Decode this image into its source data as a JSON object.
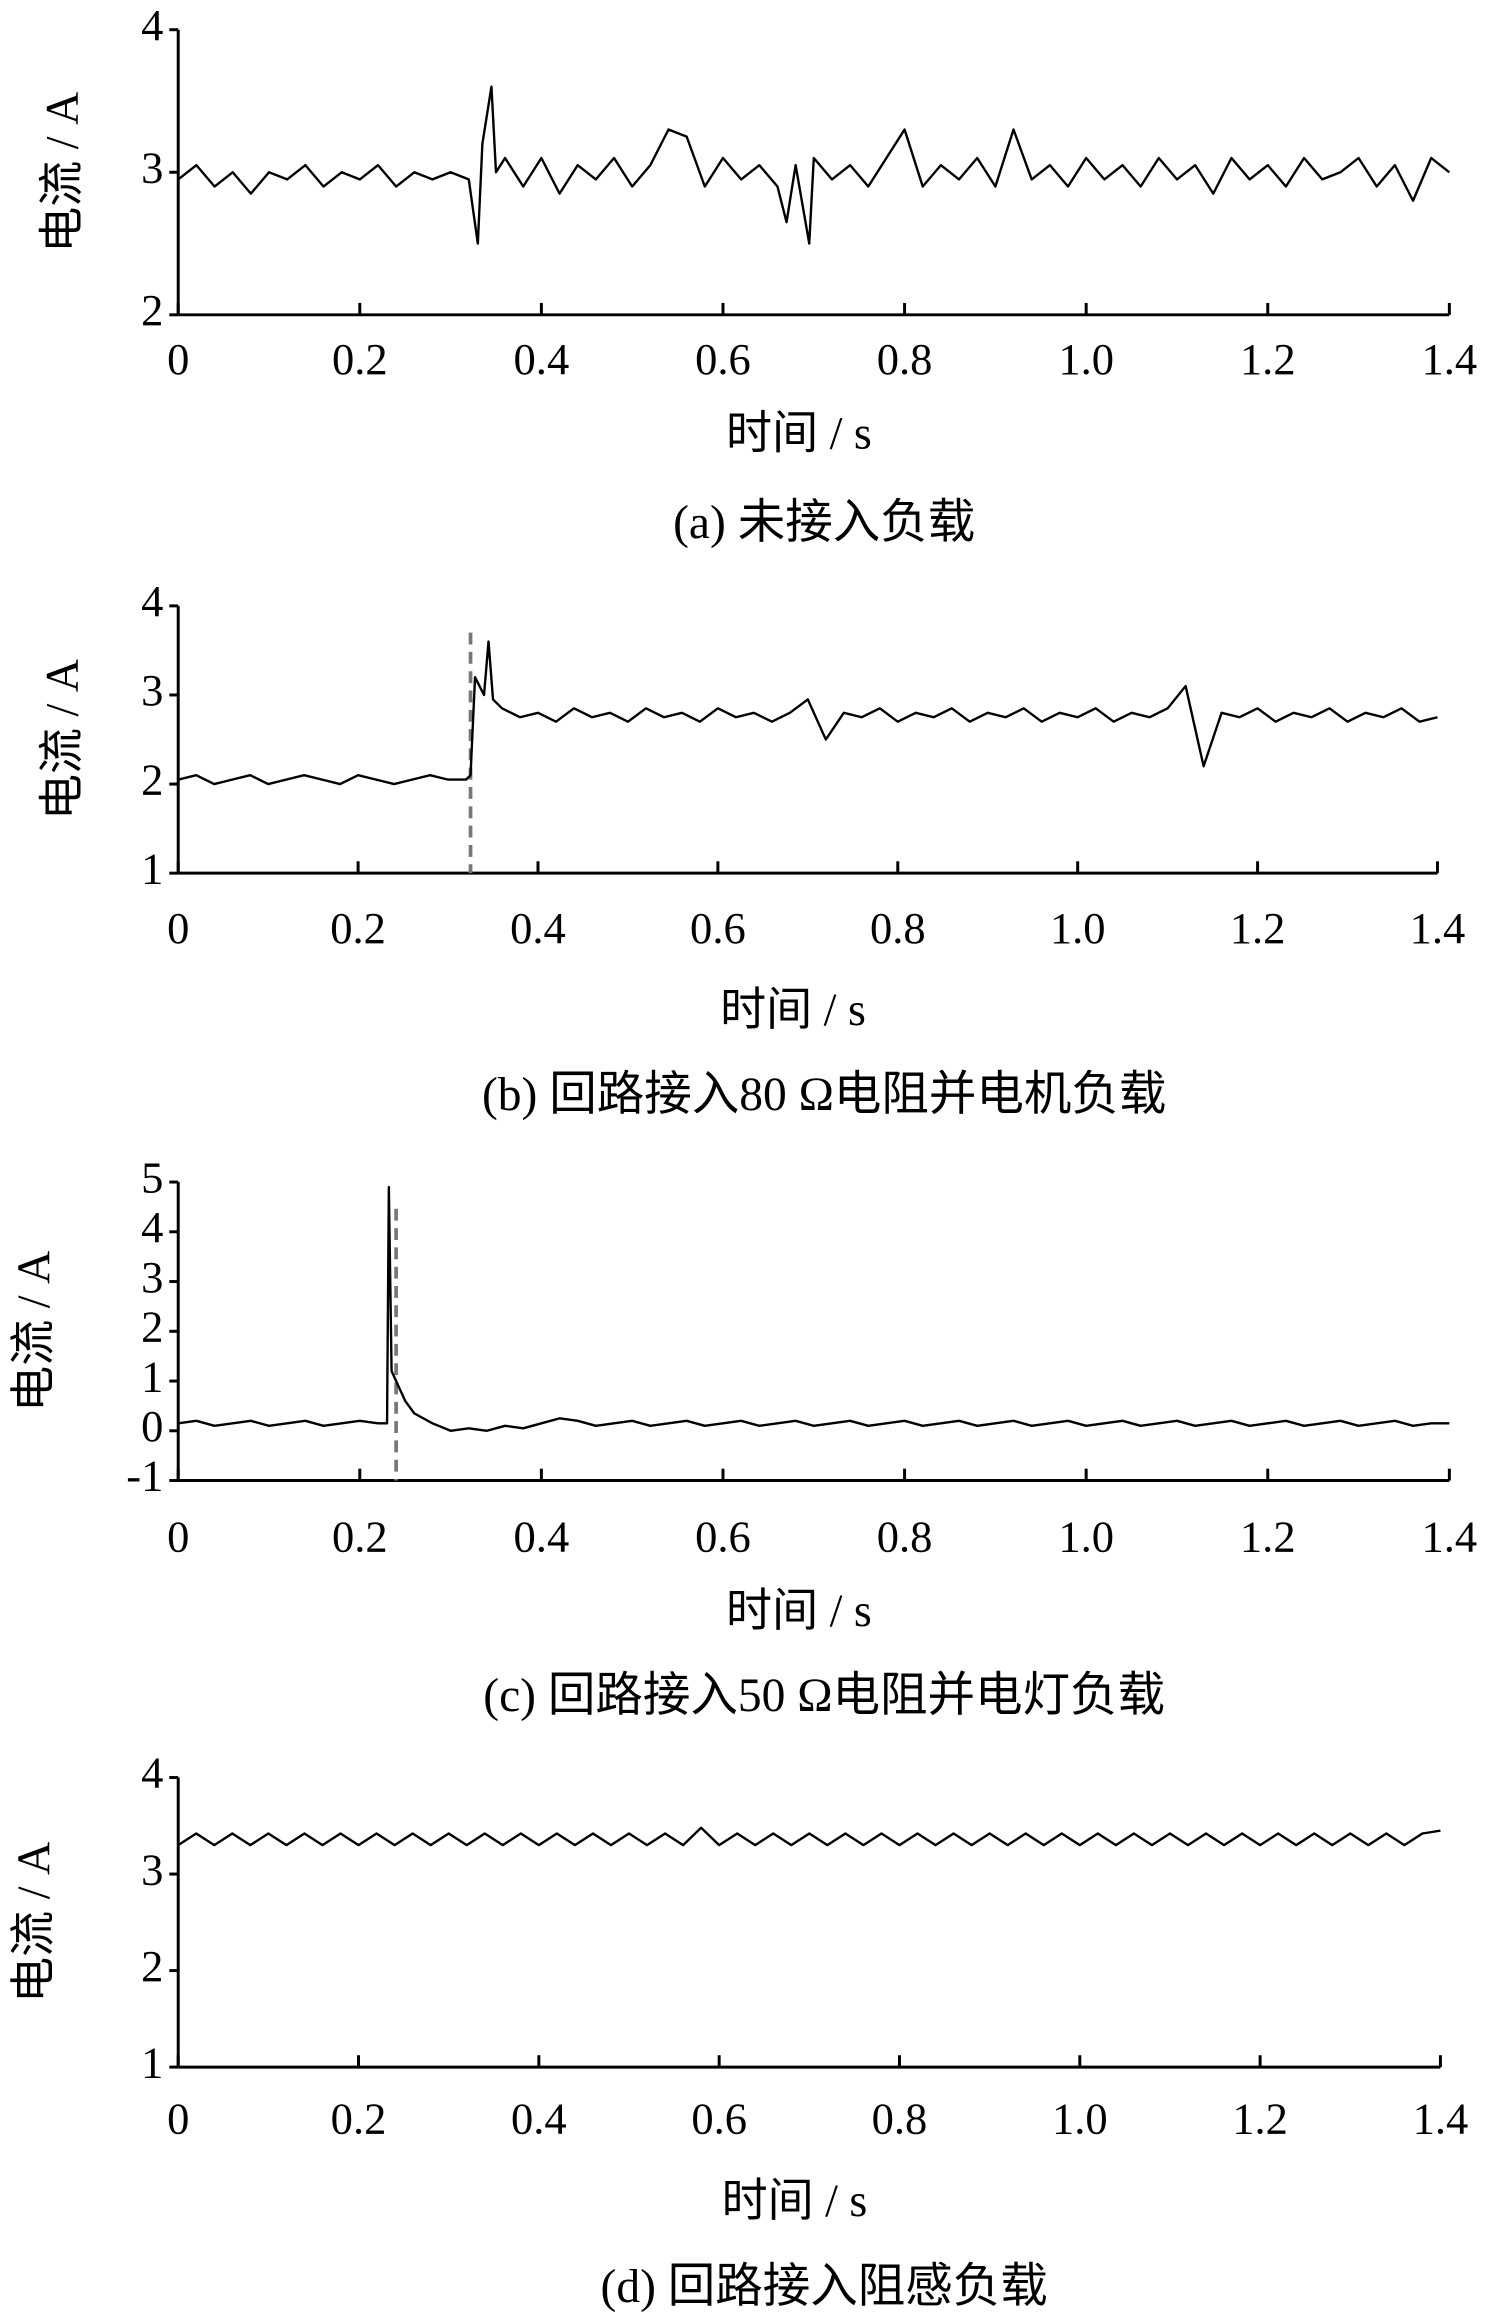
{
  "chart_data": [
    {
      "type": "line",
      "title": "(a) 未接入负载",
      "x_label": "时间 / s",
      "y_label": "电流 / A",
      "xlim": [
        0,
        1.4
      ],
      "ylim": [
        2,
        4
      ],
      "xticks": [
        0,
        0.2,
        0.4,
        0.6,
        0.8,
        {
          "value": 1,
          "label": "1.0"
        },
        1.2,
        1.4
      ],
      "yticks": [
        2,
        3,
        4
      ],
      "series": [
        {
          "color": "#000000",
          "x": [
            0,
            0.02,
            0.04,
            0.06,
            0.08,
            0.1,
            0.12,
            0.14,
            0.16,
            0.18,
            0.2,
            0.22,
            0.24,
            0.26,
            0.28,
            0.3,
            0.32,
            0.33,
            0.335,
            0.345,
            0.35,
            0.36,
            0.38,
            0.4,
            0.42,
            0.44,
            0.46,
            0.48,
            0.5,
            0.52,
            0.54,
            0.56,
            0.58,
            0.6,
            0.62,
            0.64,
            0.66,
            0.67,
            0.68,
            0.695,
            0.7,
            0.72,
            0.74,
            0.76,
            0.78,
            0.8,
            0.82,
            0.84,
            0.86,
            0.88,
            0.9,
            0.92,
            0.94,
            0.96,
            0.98,
            1,
            1.02,
            1.04,
            1.06,
            1.08,
            1.1,
            1.12,
            1.14,
            1.16,
            1.18,
            1.2,
            1.22,
            1.24,
            1.26,
            1.28,
            1.3,
            1.32,
            1.34,
            1.36,
            1.38,
            1.4
          ],
          "values": [
            2.95,
            3.05,
            2.9,
            3.0,
            2.85,
            3.0,
            2.95,
            3.05,
            2.9,
            3.0,
            2.95,
            3.05,
            2.9,
            3.0,
            2.95,
            3.0,
            2.95,
            2.5,
            3.2,
            3.6,
            3.0,
            3.1,
            2.9,
            3.1,
            2.85,
            3.05,
            2.95,
            3.1,
            2.9,
            3.05,
            3.3,
            3.25,
            2.9,
            3.1,
            2.95,
            3.05,
            2.9,
            2.65,
            3.05,
            2.5,
            3.1,
            2.95,
            3.05,
            2.9,
            3.1,
            3.3,
            2.9,
            3.05,
            2.95,
            3.1,
            2.9,
            3.3,
            2.95,
            3.05,
            2.9,
            3.1,
            2.95,
            3.05,
            2.9,
            3.1,
            2.95,
            3.05,
            2.85,
            3.1,
            2.95,
            3.05,
            2.9,
            3.1,
            2.95,
            3.0,
            3.1,
            2.9,
            3.05,
            2.8,
            3.1,
            3.0
          ]
        }
      ]
    },
    {
      "type": "line",
      "title": "(b) 回路接入80 Ω电阻并电机负载",
      "x_label": "时间 / s",
      "y_label": "电流 / A",
      "xlim": [
        0,
        1.4
      ],
      "ylim": [
        1,
        4
      ],
      "xticks": [
        0,
        0.2,
        0.4,
        0.6,
        0.8,
        {
          "value": 1,
          "label": "1.0"
        },
        1.2,
        1.4
      ],
      "yticks": [
        1,
        2,
        3,
        4
      ],
      "vlines": [
        0.325
      ],
      "vline_color": "#777777",
      "series": [
        {
          "color": "#000000",
          "x": [
            0,
            0.02,
            0.04,
            0.06,
            0.08,
            0.1,
            0.12,
            0.14,
            0.16,
            0.18,
            0.2,
            0.22,
            0.24,
            0.26,
            0.28,
            0.3,
            0.32,
            0.325,
            0.33,
            0.34,
            0.345,
            0.35,
            0.36,
            0.38,
            0.4,
            0.42,
            0.44,
            0.46,
            0.48,
            0.5,
            0.52,
            0.54,
            0.56,
            0.58,
            0.6,
            0.62,
            0.64,
            0.66,
            0.68,
            0.7,
            0.72,
            0.74,
            0.76,
            0.78,
            0.8,
            0.82,
            0.84,
            0.86,
            0.88,
            0.9,
            0.92,
            0.94,
            0.96,
            0.98,
            1,
            1.02,
            1.04,
            1.06,
            1.08,
            1.1,
            1.12,
            1.14,
            1.16,
            1.18,
            1.2,
            1.22,
            1.24,
            1.26,
            1.28,
            1.3,
            1.32,
            1.34,
            1.36,
            1.38,
            1.4
          ],
          "values": [
            2.05,
            2.1,
            2.0,
            2.05,
            2.1,
            2.0,
            2.05,
            2.1,
            2.05,
            2.0,
            2.1,
            2.05,
            2.0,
            2.05,
            2.1,
            2.05,
            2.05,
            2.1,
            3.2,
            3.0,
            3.6,
            2.95,
            2.85,
            2.75,
            2.8,
            2.7,
            2.85,
            2.75,
            2.8,
            2.7,
            2.85,
            2.75,
            2.8,
            2.7,
            2.85,
            2.75,
            2.8,
            2.7,
            2.8,
            2.95,
            2.5,
            2.8,
            2.75,
            2.85,
            2.7,
            2.8,
            2.75,
            2.85,
            2.7,
            2.8,
            2.75,
            2.85,
            2.7,
            2.8,
            2.75,
            2.85,
            2.7,
            2.8,
            2.75,
            2.85,
            3.1,
            2.2,
            2.8,
            2.75,
            2.85,
            2.7,
            2.8,
            2.75,
            2.85,
            2.7,
            2.8,
            2.75,
            2.85,
            2.7,
            2.75
          ]
        }
      ]
    },
    {
      "type": "line",
      "title": "(c) 回路接入50 Ω电阻并电灯负载",
      "x_label": "时间 / s",
      "y_label": "电流 / A",
      "xlim": [
        0,
        1.4
      ],
      "ylim": [
        -1,
        5
      ],
      "xticks": [
        0,
        0.2,
        0.4,
        0.6,
        0.8,
        {
          "value": 1,
          "label": "1.0"
        },
        1.2,
        1.4
      ],
      "yticks": [
        -1,
        0,
        1,
        2,
        3,
        4,
        5
      ],
      "vlines": [
        0.24
      ],
      "vline_color": "#777777",
      "series": [
        {
          "color": "#000000",
          "x": [
            0,
            0.02,
            0.04,
            0.06,
            0.08,
            0.1,
            0.12,
            0.14,
            0.16,
            0.18,
            0.2,
            0.22,
            0.23,
            0.232,
            0.235,
            0.24,
            0.25,
            0.26,
            0.28,
            0.3,
            0.32,
            0.34,
            0.36,
            0.38,
            0.4,
            0.42,
            0.44,
            0.46,
            0.48,
            0.5,
            0.52,
            0.54,
            0.56,
            0.58,
            0.6,
            0.62,
            0.64,
            0.66,
            0.68,
            0.7,
            0.72,
            0.74,
            0.76,
            0.78,
            0.8,
            0.82,
            0.84,
            0.86,
            0.88,
            0.9,
            0.92,
            0.94,
            0.96,
            0.98,
            1,
            1.02,
            1.04,
            1.06,
            1.08,
            1.1,
            1.12,
            1.14,
            1.16,
            1.18,
            1.2,
            1.22,
            1.24,
            1.26,
            1.28,
            1.3,
            1.32,
            1.34,
            1.36,
            1.38,
            1.4
          ],
          "values": [
            0.15,
            0.2,
            0.1,
            0.15,
            0.2,
            0.1,
            0.15,
            0.2,
            0.1,
            0.15,
            0.2,
            0.15,
            0.15,
            4.9,
            1.2,
            1.0,
            0.6,
            0.35,
            0.15,
            0.0,
            0.05,
            0.0,
            0.1,
            0.05,
            0.15,
            0.25,
            0.2,
            0.1,
            0.15,
            0.2,
            0.1,
            0.15,
            0.2,
            0.1,
            0.15,
            0.2,
            0.1,
            0.15,
            0.2,
            0.1,
            0.15,
            0.2,
            0.1,
            0.15,
            0.2,
            0.1,
            0.15,
            0.2,
            0.1,
            0.15,
            0.2,
            0.1,
            0.15,
            0.2,
            0.1,
            0.15,
            0.2,
            0.1,
            0.15,
            0.2,
            0.1,
            0.15,
            0.2,
            0.1,
            0.15,
            0.2,
            0.1,
            0.15,
            0.2,
            0.1,
            0.15,
            0.2,
            0.1,
            0.15,
            0.15
          ]
        }
      ]
    },
    {
      "type": "line",
      "title": "(d) 回路接入阻感负载",
      "x_label": "时间 / s",
      "y_label": "电流 / A",
      "xlim": [
        0,
        1.4
      ],
      "ylim": [
        1,
        4
      ],
      "xticks": [
        0,
        0.2,
        0.4,
        0.6,
        0.8,
        {
          "value": 1,
          "label": "1.0"
        },
        1.2,
        1.4
      ],
      "yticks": [
        1,
        2,
        3,
        4
      ],
      "series": [
        {
          "color": "#000000",
          "x": [
            0,
            0.02,
            0.04,
            0.06,
            0.08,
            0.1,
            0.12,
            0.14,
            0.16,
            0.18,
            0.2,
            0.22,
            0.24,
            0.26,
            0.28,
            0.3,
            0.32,
            0.34,
            0.36,
            0.38,
            0.4,
            0.42,
            0.44,
            0.46,
            0.48,
            0.5,
            0.52,
            0.54,
            0.56,
            0.58,
            0.6,
            0.62,
            0.64,
            0.66,
            0.68,
            0.7,
            0.72,
            0.74,
            0.76,
            0.78,
            0.8,
            0.82,
            0.84,
            0.86,
            0.88,
            0.9,
            0.92,
            0.94,
            0.96,
            0.98,
            1,
            1.02,
            1.04,
            1.06,
            1.08,
            1.1,
            1.12,
            1.14,
            1.16,
            1.18,
            1.2,
            1.22,
            1.24,
            1.26,
            1.28,
            1.3,
            1.32,
            1.34,
            1.36,
            1.38,
            1.4
          ],
          "values": [
            3.3,
            3.42,
            3.3,
            3.42,
            3.3,
            3.42,
            3.3,
            3.42,
            3.3,
            3.42,
            3.3,
            3.42,
            3.3,
            3.42,
            3.3,
            3.42,
            3.3,
            3.42,
            3.3,
            3.42,
            3.3,
            3.42,
            3.3,
            3.42,
            3.3,
            3.42,
            3.3,
            3.42,
            3.3,
            3.48,
            3.3,
            3.42,
            3.3,
            3.42,
            3.3,
            3.42,
            3.3,
            3.42,
            3.3,
            3.42,
            3.3,
            3.42,
            3.3,
            3.42,
            3.3,
            3.42,
            3.3,
            3.42,
            3.3,
            3.42,
            3.3,
            3.42,
            3.3,
            3.42,
            3.3,
            3.42,
            3.3,
            3.42,
            3.3,
            3.42,
            3.3,
            3.42,
            3.3,
            3.42,
            3.3,
            3.42,
            3.3,
            3.42,
            3.3,
            3.42,
            3.45
          ]
        }
      ]
    }
  ]
}
